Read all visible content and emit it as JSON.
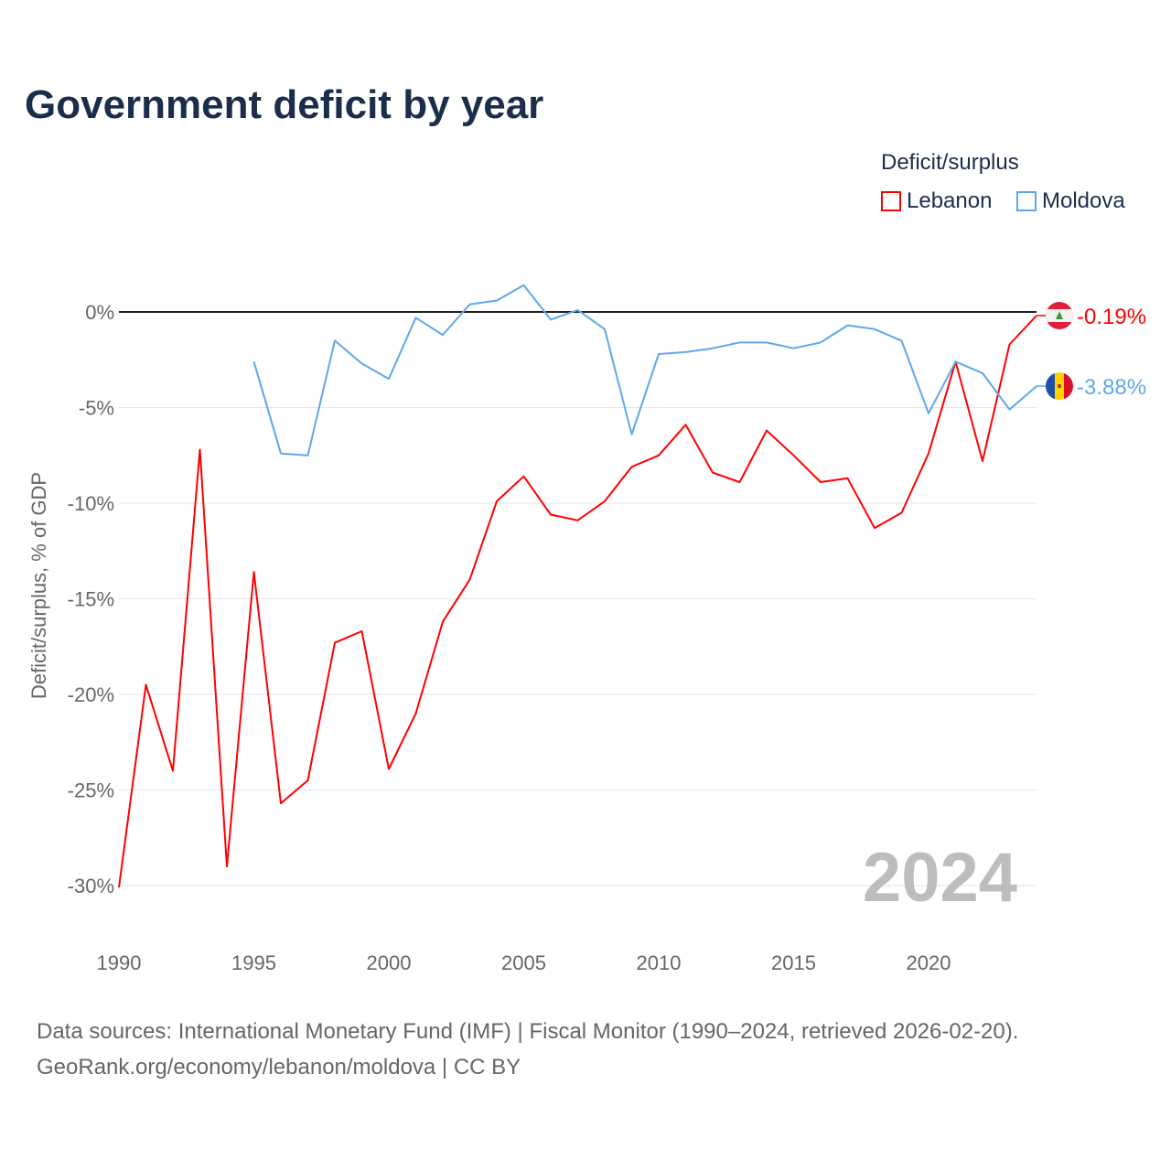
{
  "chart_data": {
    "type": "line",
    "title": "Government deficit by year",
    "ylabel": "Deficit/surplus, % of GDP",
    "xlabel": "",
    "xlim": [
      1990,
      2024
    ],
    "ylim": [
      -30,
      0
    ],
    "x_ticks": [
      "1990",
      "1995",
      "2000",
      "2005",
      "2010",
      "2015",
      "2020"
    ],
    "y_ticks": [
      "0%",
      "-5%",
      "-10%",
      "-15%",
      "-20%",
      "-25%",
      "-30%"
    ],
    "y_tick_values": [
      0,
      -5,
      -10,
      -15,
      -20,
      -25,
      -30
    ],
    "x_tick_values": [
      1990,
      1995,
      2000,
      2005,
      2010,
      2015,
      2020
    ],
    "grid": true,
    "legend_title": "Deficit/surplus",
    "legend_position": "top-right",
    "year_watermark": "2024",
    "series": [
      {
        "name": "Lebanon",
        "color": "#ff0000",
        "end_label": "-0.19%",
        "flag": "lebanon-flag",
        "x": [
          1990,
          1991,
          1992,
          1993,
          1994,
          1995,
          1996,
          1997,
          1998,
          1999,
          2000,
          2001,
          2002,
          2003,
          2004,
          2005,
          2006,
          2007,
          2008,
          2009,
          2010,
          2011,
          2012,
          2013,
          2014,
          2015,
          2016,
          2017,
          2018,
          2019,
          2020,
          2021,
          2022,
          2023,
          2024
        ],
        "values": [
          -30.1,
          -19.5,
          -24.0,
          -7.2,
          -29.0,
          -13.6,
          -25.7,
          -24.5,
          -17.3,
          -16.7,
          -23.9,
          -21.0,
          -16.2,
          -14.0,
          -9.9,
          -8.6,
          -10.6,
          -10.9,
          -9.9,
          -8.1,
          -7.5,
          -5.9,
          -8.4,
          -8.9,
          -6.2,
          -7.5,
          -8.9,
          -8.7,
          -11.3,
          -10.5,
          -7.4,
          -2.6,
          -7.8,
          -1.7,
          -0.19
        ]
      },
      {
        "name": "Moldova",
        "color": "#5ea8ea",
        "end_label": "-3.88%",
        "flag": "moldova-flag",
        "x": [
          1995,
          1996,
          1997,
          1998,
          1999,
          2000,
          2001,
          2002,
          2003,
          2004,
          2005,
          2006,
          2007,
          2008,
          2009,
          2010,
          2011,
          2012,
          2013,
          2014,
          2015,
          2016,
          2017,
          2018,
          2019,
          2020,
          2021,
          2022,
          2023,
          2024
        ],
        "values": [
          -2.6,
          -7.4,
          -7.5,
          -1.5,
          -2.7,
          -3.5,
          -0.3,
          -1.2,
          0.4,
          0.6,
          1.4,
          -0.4,
          0.1,
          -0.9,
          -6.4,
          -2.2,
          -2.1,
          -1.9,
          -1.6,
          -1.6,
          -1.9,
          -1.6,
          -0.7,
          -0.9,
          -1.5,
          -5.3,
          -2.6,
          -3.2,
          -5.1,
          -3.88
        ]
      }
    ]
  },
  "source": {
    "line1": "Data sources: International Monetary Fund (IMF) | Fiscal Monitor (1990–2024, retrieved 2026-02-20).",
    "line2": "GeoRank.org/economy/lebanon/moldova | CC BY"
  }
}
